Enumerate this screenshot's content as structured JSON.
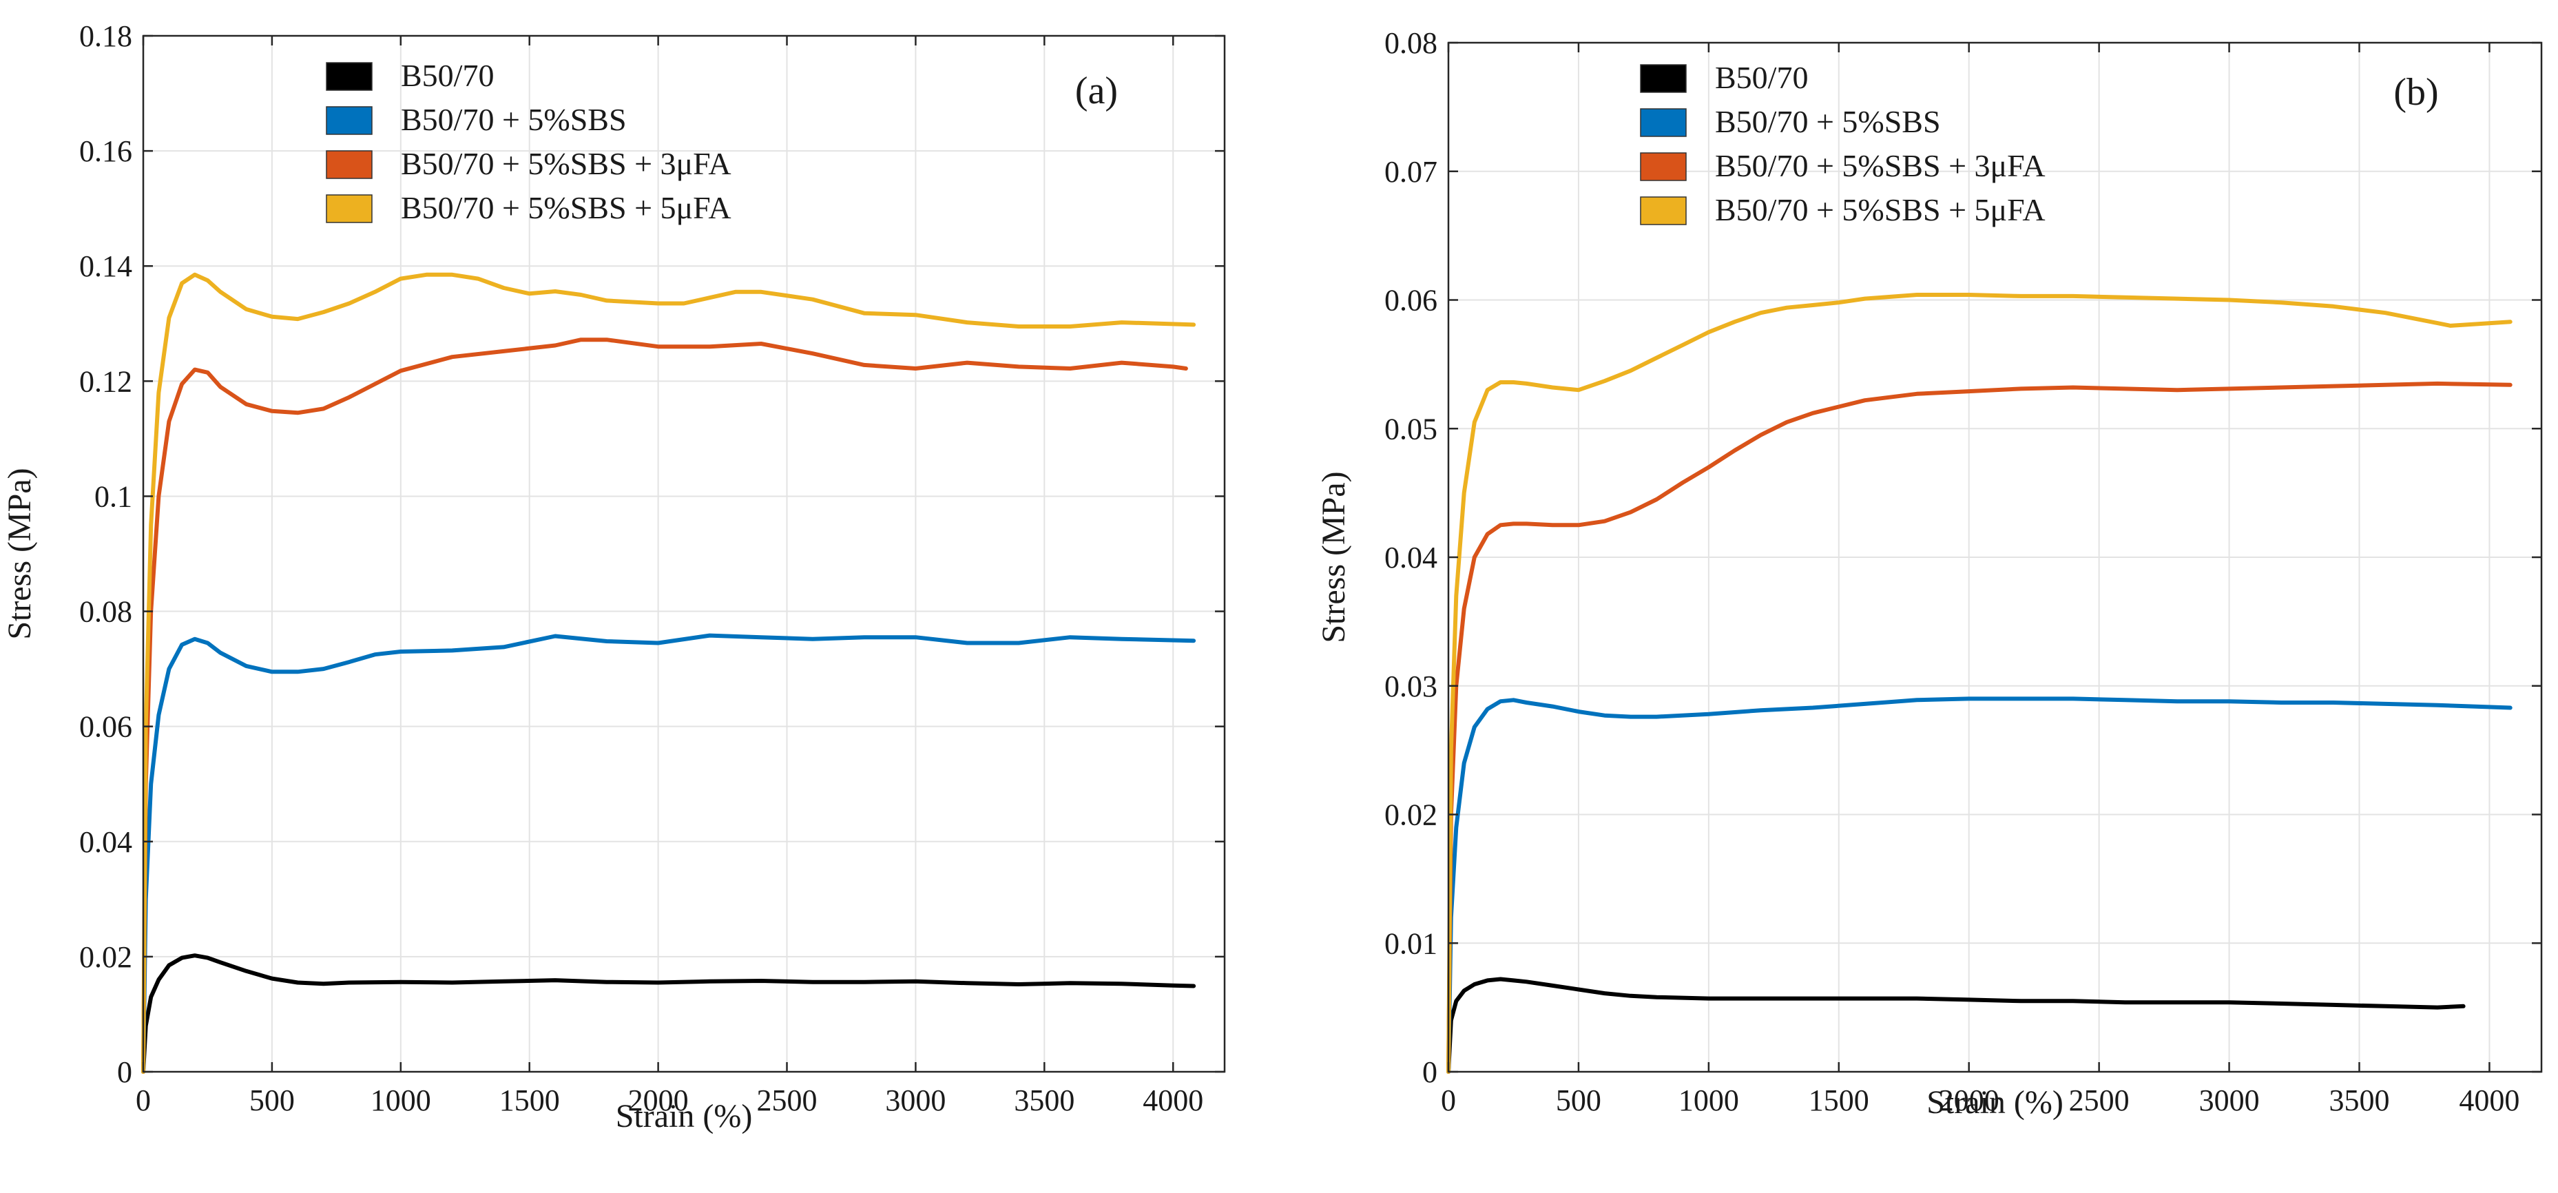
{
  "chart_data": [
    {
      "type": "line",
      "panel_label": "(a)",
      "xlabel": "Strain (%)",
      "ylabel": "Stress (MPa)",
      "xlim": [
        0,
        4200
      ],
      "ylim": [
        0,
        0.18
      ],
      "xticks": [
        0,
        500,
        1000,
        1500,
        2000,
        2500,
        3000,
        3500,
        4000
      ],
      "yticks": [
        0,
        0.02,
        0.04,
        0.06,
        0.08,
        0.1,
        0.12,
        0.14,
        0.16,
        0.18
      ],
      "ytick_labels": [
        "0",
        "0.02",
        "0.04",
        "0.06",
        "0.08",
        "0.1",
        "0.12",
        "0.14",
        "0.16",
        "0.18"
      ],
      "grid": true,
      "legend_position": "top-left",
      "series": [
        {
          "name": "B50/70",
          "color": "#000000",
          "x": [
            0,
            10,
            30,
            60,
            100,
            150,
            200,
            250,
            300,
            400,
            500,
            600,
            700,
            800,
            1000,
            1200,
            1400,
            1600,
            1800,
            2000,
            2200,
            2400,
            2600,
            2800,
            3000,
            3200,
            3400,
            3600,
            3800,
            4000,
            4080
          ],
          "y": [
            0,
            0.008,
            0.013,
            0.016,
            0.0185,
            0.0198,
            0.0202,
            0.0198,
            0.019,
            0.0175,
            0.0162,
            0.0155,
            0.0153,
            0.0155,
            0.0156,
            0.0155,
            0.0157,
            0.0159,
            0.0156,
            0.0155,
            0.0157,
            0.0158,
            0.0156,
            0.0156,
            0.0157,
            0.0154,
            0.0152,
            0.0154,
            0.0153,
            0.015,
            0.0149
          ]
        },
        {
          "name": "B50/70 + 5%SBS",
          "color": "#0072BD",
          "x": [
            0,
            10,
            30,
            60,
            100,
            150,
            200,
            250,
            300,
            400,
            500,
            600,
            700,
            800,
            900,
            1000,
            1200,
            1400,
            1600,
            1800,
            2000,
            2200,
            2400,
            2600,
            2800,
            3000,
            3200,
            3400,
            3600,
            3800,
            4080
          ],
          "y": [
            0,
            0.03,
            0.05,
            0.062,
            0.07,
            0.0742,
            0.0752,
            0.0745,
            0.0728,
            0.0705,
            0.0695,
            0.0695,
            0.07,
            0.0712,
            0.0725,
            0.073,
            0.0732,
            0.0738,
            0.0757,
            0.0748,
            0.0745,
            0.0758,
            0.0755,
            0.0752,
            0.0755,
            0.0755,
            0.0745,
            0.0745,
            0.0755,
            0.0752,
            0.0749
          ]
        },
        {
          "name": "B50/70 + 5%SBS + 3μFA",
          "color": "#D95319",
          "x": [
            0,
            10,
            30,
            60,
            100,
            150,
            200,
            250,
            300,
            400,
            500,
            600,
            700,
            800,
            900,
            1000,
            1200,
            1400,
            1600,
            1700,
            1800,
            2000,
            2200,
            2400,
            2600,
            2800,
            3000,
            3200,
            3400,
            3600,
            3800,
            4000,
            4050
          ],
          "y": [
            0,
            0.05,
            0.08,
            0.1,
            0.113,
            0.1195,
            0.122,
            0.1215,
            0.119,
            0.116,
            0.1148,
            0.1145,
            0.1152,
            0.1172,
            0.1195,
            0.1218,
            0.1242,
            0.1252,
            0.1262,
            0.1272,
            0.1272,
            0.126,
            0.126,
            0.1265,
            0.1248,
            0.1228,
            0.1222,
            0.1232,
            0.1225,
            0.1222,
            0.1232,
            0.1225,
            0.1222
          ]
        },
        {
          "name": "B50/70 + 5%SBS + 5μFA",
          "color": "#EDB120",
          "x": [
            0,
            10,
            30,
            60,
            100,
            150,
            200,
            250,
            300,
            400,
            500,
            600,
            700,
            800,
            900,
            1000,
            1100,
            1200,
            1300,
            1400,
            1500,
            1600,
            1700,
            1800,
            2000,
            2100,
            2200,
            2300,
            2400,
            2600,
            2800,
            3000,
            3200,
            3400,
            3600,
            3800,
            4080
          ],
          "y": [
            0,
            0.06,
            0.095,
            0.118,
            0.131,
            0.137,
            0.1385,
            0.1375,
            0.1355,
            0.1325,
            0.1312,
            0.1308,
            0.132,
            0.1335,
            0.1355,
            0.1378,
            0.1385,
            0.1385,
            0.1378,
            0.1362,
            0.1352,
            0.1356,
            0.135,
            0.134,
            0.1335,
            0.1335,
            0.1345,
            0.1355,
            0.1355,
            0.1342,
            0.1318,
            0.1315,
            0.1302,
            0.1295,
            0.1295,
            0.1302,
            0.1298
          ]
        }
      ]
    },
    {
      "type": "line",
      "panel_label": "(b)",
      "xlabel": "Strain (%)",
      "ylabel": "Stress (MPa)",
      "xlim": [
        0,
        4200
      ],
      "ylim": [
        0,
        0.08
      ],
      "xticks": [
        0,
        500,
        1000,
        1500,
        2000,
        2500,
        3000,
        3500,
        4000
      ],
      "yticks": [
        0,
        0.01,
        0.02,
        0.03,
        0.04,
        0.05,
        0.06,
        0.07,
        0.08
      ],
      "ytick_labels": [
        "0",
        "0.01",
        "0.02",
        "0.03",
        "0.04",
        "0.05",
        "0.06",
        "0.07",
        "0.08"
      ],
      "grid": true,
      "legend_position": "top-left",
      "series": [
        {
          "name": "B50/70",
          "color": "#000000",
          "x": [
            0,
            10,
            30,
            60,
            100,
            150,
            200,
            250,
            300,
            400,
            500,
            600,
            700,
            800,
            1000,
            1200,
            1400,
            1600,
            1800,
            2000,
            2200,
            2400,
            2600,
            2800,
            3000,
            3200,
            3400,
            3600,
            3800,
            3900
          ],
          "y": [
            0,
            0.004,
            0.0055,
            0.0063,
            0.0068,
            0.0071,
            0.0072,
            0.0071,
            0.007,
            0.0067,
            0.0064,
            0.0061,
            0.0059,
            0.0058,
            0.0057,
            0.0057,
            0.0057,
            0.0057,
            0.0057,
            0.0056,
            0.0055,
            0.0055,
            0.0054,
            0.0054,
            0.0054,
            0.0053,
            0.0052,
            0.0051,
            0.005,
            0.0051
          ]
        },
        {
          "name": "B50/70 + 5%SBS",
          "color": "#0072BD",
          "x": [
            0,
            10,
            30,
            60,
            100,
            150,
            200,
            250,
            300,
            400,
            500,
            600,
            700,
            800,
            1000,
            1200,
            1400,
            1600,
            1800,
            2000,
            2200,
            2400,
            2600,
            2800,
            3000,
            3200,
            3400,
            3600,
            3800,
            4080
          ],
          "y": [
            0,
            0.012,
            0.019,
            0.024,
            0.0268,
            0.0282,
            0.0288,
            0.0289,
            0.0287,
            0.0284,
            0.028,
            0.0277,
            0.0276,
            0.0276,
            0.0278,
            0.0281,
            0.0283,
            0.0286,
            0.0289,
            0.029,
            0.029,
            0.029,
            0.0289,
            0.0288,
            0.0288,
            0.0287,
            0.0287,
            0.0286,
            0.0285,
            0.0283
          ]
        },
        {
          "name": "B50/70 + 5%SBS + 3μFA",
          "color": "#D95319",
          "x": [
            0,
            10,
            30,
            60,
            100,
            150,
            200,
            250,
            300,
            400,
            500,
            600,
            700,
            800,
            900,
            1000,
            1100,
            1200,
            1300,
            1400,
            1500,
            1600,
            1800,
            2000,
            2200,
            2400,
            2600,
            2800,
            3000,
            3200,
            3400,
            3600,
            3800,
            4080
          ],
          "y": [
            0,
            0.02,
            0.03,
            0.036,
            0.04,
            0.0418,
            0.0425,
            0.0426,
            0.0426,
            0.0425,
            0.0425,
            0.0428,
            0.0435,
            0.0445,
            0.0458,
            0.047,
            0.0483,
            0.0495,
            0.0505,
            0.0512,
            0.0517,
            0.0522,
            0.0527,
            0.0529,
            0.0531,
            0.0532,
            0.0531,
            0.053,
            0.0531,
            0.0532,
            0.0533,
            0.0534,
            0.0535,
            0.0534
          ]
        },
        {
          "name": "B50/70 + 5%SBS + 5μFA",
          "color": "#EDB120",
          "x": [
            0,
            10,
            30,
            60,
            100,
            150,
            200,
            250,
            300,
            400,
            500,
            600,
            700,
            800,
            900,
            1000,
            1100,
            1200,
            1300,
            1400,
            1500,
            1600,
            1800,
            2000,
            2200,
            2400,
            2600,
            2800,
            3000,
            3200,
            3400,
            3600,
            3800,
            3850,
            4080
          ],
          "y": [
            0,
            0.025,
            0.037,
            0.045,
            0.0505,
            0.053,
            0.0536,
            0.0536,
            0.0535,
            0.0532,
            0.053,
            0.0537,
            0.0545,
            0.0555,
            0.0565,
            0.0575,
            0.0583,
            0.059,
            0.0594,
            0.0596,
            0.0598,
            0.0601,
            0.0604,
            0.0604,
            0.0603,
            0.0603,
            0.0602,
            0.0601,
            0.06,
            0.0598,
            0.0595,
            0.059,
            0.0582,
            0.058,
            0.0583
          ]
        }
      ]
    }
  ]
}
